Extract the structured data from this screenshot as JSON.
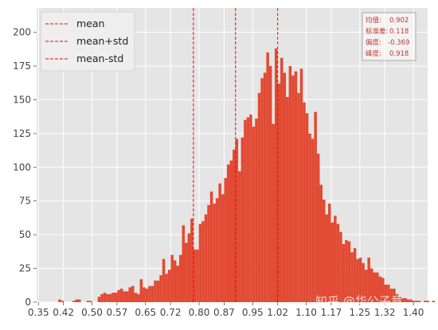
{
  "chart_data": {
    "type": "bar",
    "subtype": "histogram",
    "xlim": [
      0.345,
      1.44
    ],
    "ylim": [
      0,
      218
    ],
    "x_ticks": [
      0.35,
      0.42,
      0.5,
      0.57,
      0.65,
      0.72,
      0.8,
      0.87,
      0.95,
      1.02,
      1.1,
      1.17,
      1.25,
      1.32,
      1.4
    ],
    "x_tick_labels": [
      "0.35",
      "0.42",
      "0.50",
      "0.57",
      "0.65",
      "0.72",
      "0.80",
      "0.87",
      "0.95",
      "1.02",
      "1.10",
      "1.17",
      "1.25",
      "1.32",
      "1.40"
    ],
    "y_ticks": [
      0,
      25,
      50,
      75,
      100,
      125,
      150,
      175,
      200
    ],
    "y_tick_labels": [
      "0",
      "25",
      "50",
      "75",
      "100",
      "125",
      "150",
      "175",
      "200"
    ],
    "grid": true,
    "bar_color": "#e24a33",
    "background_color": "#e5e5e5",
    "bins": {
      "start": 0.39,
      "width": 0.00787,
      "counts": [
        0,
        0,
        2,
        1,
        0,
        0,
        0,
        1,
        2,
        2,
        0,
        0,
        1,
        1,
        0,
        0,
        4,
        6,
        7,
        6,
        6,
        7,
        7,
        9,
        10,
        8,
        8,
        11,
        12,
        7,
        6,
        17,
        11,
        10,
        12,
        12,
        16,
        16,
        20,
        32,
        21,
        24,
        35,
        31,
        27,
        35,
        57,
        44,
        51,
        62,
        39,
        39,
        58,
        60,
        65,
        72,
        82,
        73,
        77,
        88,
        80,
        92,
        102,
        105,
        113,
        121,
        97,
        122,
        135,
        137,
        139,
        130,
        136,
        155,
        166,
        170,
        185,
        175,
        132,
        188,
        162,
        181,
        170,
        152,
        175,
        168,
        171,
        155,
        173,
        148,
        140,
        125,
        121,
        141,
        110,
        87,
        76,
        65,
        73,
        59,
        64,
        58,
        52,
        43,
        46,
        45,
        37,
        40,
        32,
        33,
        29,
        24,
        33,
        25,
        22,
        22,
        19,
        18,
        13,
        13,
        10,
        10,
        6,
        4,
        3,
        3,
        2,
        2,
        1,
        1,
        1,
        0,
        1,
        1,
        0,
        1,
        0,
        0,
        0,
        0,
        0,
        1,
        1,
        0
      ]
    },
    "vlines": [
      {
        "label": "mean",
        "x": 0.902,
        "color": "#ff0000",
        "style": "dashed"
      },
      {
        "label": "mean+std",
        "x": 1.02,
        "color": "#ff0000",
        "style": "dashed"
      },
      {
        "label": "mean-std",
        "x": 0.784,
        "color": "#ff0000",
        "style": "dashed"
      }
    ],
    "legend": {
      "placement": "top-left",
      "entries": [
        "mean",
        "mean+std",
        "mean-std"
      ]
    },
    "stats_box": {
      "placement": "top-right",
      "lines": [
        {
          "label": "均值:",
          "value": "0.902"
        },
        {
          "label": "标准差:",
          "value": "0.118"
        },
        {
          "label": "偏度:",
          "value": "-0.369"
        },
        {
          "label": "峰度:",
          "value": "0.918"
        }
      ]
    }
  },
  "watermark": "知乎 @华公子意"
}
